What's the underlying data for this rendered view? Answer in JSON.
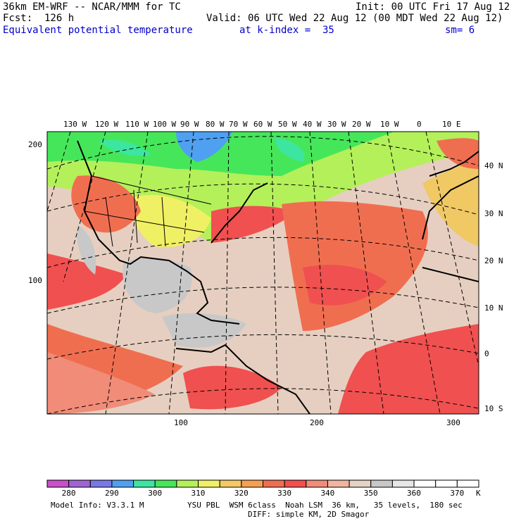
{
  "header": {
    "model": "36km EM-WRF -- NCAR/MMM for TC",
    "init": "Init: 00 UTC Fri 17 Aug 12",
    "fcst": "Fcst:  126 h",
    "valid": "Valid: 06 UTC Wed 22 Aug 12 (00 MDT Wed 22 Aug 12)",
    "field": "Equivalent potential temperature",
    "kindex": "at k-index =  35",
    "sm": "sm= 6"
  },
  "map": {
    "lon_labels": [
      "130 W",
      "120 W",
      "110 W",
      "100 W",
      "90 W",
      "80 W",
      "70 W",
      "60 W",
      "50 W",
      "40 W",
      "30 W",
      "20 W",
      "10 W",
      "0",
      "10 E"
    ],
    "lat_labels": [
      "40 N",
      "30 N",
      "20 N",
      "10 N",
      "0",
      "10 S"
    ],
    "left_ticks": [
      "200",
      "100"
    ],
    "bottom_ticks": [
      "100",
      "200",
      "300"
    ]
  },
  "legend": {
    "labels": [
      "280",
      "290",
      "300",
      "310",
      "320",
      "330",
      "340",
      "350",
      "360",
      "370"
    ],
    "unit": "K",
    "colors": [
      "#c850c8",
      "#a064d2",
      "#7878e6",
      "#4fa0f0",
      "#3ce6a0",
      "#46e65a",
      "#b4f05a",
      "#f0f064",
      "#f5c864",
      "#f5a050",
      "#f06e50",
      "#f05050",
      "#f08c78",
      "#f0b4a0",
      "#e6d2c3",
      "#c8c8c8",
      "#e6e6e6",
      "#ffffff",
      "#ffffff",
      "#ffffff"
    ]
  },
  "footer": {
    "model_info": "Model Info: V3.3.1 M",
    "physics": "YSU PBL  WSM 6class  Noah LSM  36 km,   35 levels,  180 sec",
    "diffusion": "DIFF: simple KM, 2D Smagor"
  }
}
